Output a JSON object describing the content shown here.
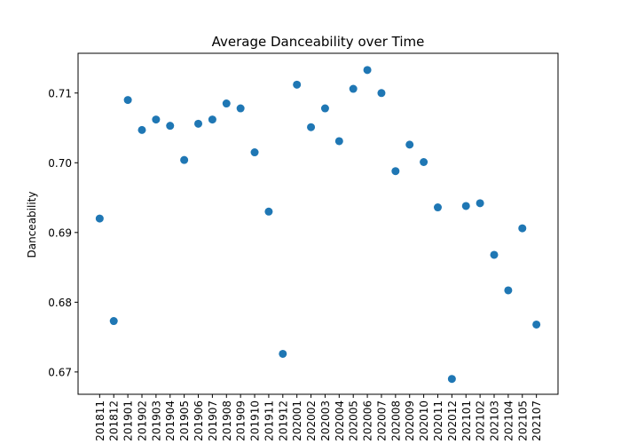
{
  "chart_data": {
    "type": "scatter",
    "title": "Average Danceability over Time",
    "xlabel": "",
    "ylabel": "Danceability",
    "color": "#1f77b4",
    "grid": false,
    "ylim": [
      0.6668,
      0.7157
    ],
    "yticks": [
      0.67,
      0.68,
      0.69,
      0.7,
      0.71
    ],
    "ytick_labels": [
      "0.67",
      "0.68",
      "0.69",
      "0.70",
      "0.71"
    ],
    "categories": [
      "201811",
      "201812",
      "201901",
      "201902",
      "201903",
      "201904",
      "201905",
      "201906",
      "201907",
      "201908",
      "201909",
      "201910",
      "201911",
      "201912",
      "202001",
      "202002",
      "202003",
      "202004",
      "202005",
      "202006",
      "202007",
      "202008",
      "202009",
      "202010",
      "202011",
      "202012",
      "202101",
      "202102",
      "202103",
      "202104",
      "202105",
      "202107"
    ],
    "values": [
      0.692,
      0.6773,
      0.709,
      0.7047,
      0.7062,
      0.7053,
      0.7004,
      0.7056,
      0.7062,
      0.7085,
      0.7078,
      0.7015,
      0.693,
      0.6726,
      0.7112,
      0.7051,
      0.7078,
      0.7031,
      0.7106,
      0.7133,
      0.71,
      0.6988,
      0.7026,
      0.7001,
      0.6936,
      0.669,
      0.6938,
      0.6942,
      0.6868,
      0.6817,
      0.6906,
      0.6768
    ]
  }
}
